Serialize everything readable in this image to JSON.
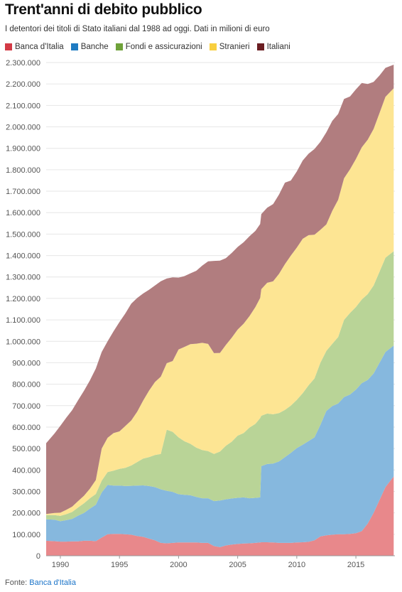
{
  "title": "Trent'anni di debito pubblico",
  "subtitle": "I detentori dei titoli di Stato italiani dal 1988 ad oggi. Dati in milioni di euro",
  "source": {
    "label": "Fonte:",
    "link_text": "Banca d'Italia"
  },
  "chart_data": {
    "type": "area",
    "stacked": true,
    "x": [
      1988.8,
      1989.5,
      1990,
      1990.5,
      1991,
      1991.5,
      1992,
      1992.5,
      1993,
      1993.5,
      1994,
      1994.5,
      1995,
      1995.5,
      1996,
      1996.5,
      1997,
      1997.5,
      1998,
      1998.5,
      1999,
      1999.5,
      2000,
      2000.5,
      2001,
      2001.5,
      2002,
      2002.5,
      2003,
      2003.5,
      2004,
      2004.5,
      2005,
      2005.5,
      2006,
      2006.5,
      2006.9,
      2007,
      2007.5,
      2008,
      2008.5,
      2009,
      2009.5,
      2010,
      2010.5,
      2011,
      2011.5,
      2012,
      2012.5,
      2013,
      2013.5,
      2014,
      2014.5,
      2015,
      2015.5,
      2016,
      2016.5,
      2017,
      2017.5,
      2018.2
    ],
    "series": [
      {
        "name": "Banca d'Italia",
        "color": "#e8888b",
        "values": [
          70,
          68,
          66,
          66,
          67,
          67,
          70,
          70,
          68,
          85,
          100,
          102,
          102,
          100,
          98,
          92,
          88,
          80,
          72,
          60,
          58,
          60,
          62,
          62,
          62,
          62,
          60,
          60,
          45,
          40,
          48,
          52,
          55,
          57,
          58,
          60,
          62,
          63,
          63,
          62,
          60,
          60,
          60,
          62,
          63,
          65,
          72,
          90,
          95,
          98,
          100,
          100,
          102,
          105,
          115,
          150,
          200,
          260,
          320,
          370
        ]
      },
      {
        "name": "Banche",
        "color": "#86b8de",
        "values": [
          100,
          100,
          95,
          100,
          105,
          120,
          130,
          150,
          170,
          210,
          230,
          225,
          225,
          225,
          228,
          235,
          240,
          245,
          248,
          250,
          245,
          238,
          225,
          222,
          220,
          212,
          208,
          208,
          210,
          218,
          215,
          215,
          215,
          215,
          210,
          210,
          210,
          355,
          365,
          368,
          380,
          400,
          420,
          440,
          455,
          470,
          480,
          520,
          580,
          600,
          610,
          640,
          650,
          670,
          690,
          670,
          650,
          640,
          630,
          610
        ]
      },
      {
        "name": "Fondi e assicurazioni",
        "color": "#b9d497",
        "values": [
          20,
          22,
          25,
          28,
          32,
          38,
          45,
          48,
          50,
          55,
          60,
          70,
          78,
          85,
          95,
          110,
          125,
          135,
          150,
          165,
          285,
          280,
          265,
          250,
          240,
          230,
          225,
          220,
          220,
          228,
          250,
          265,
          290,
          300,
          330,
          345,
          370,
          235,
          235,
          230,
          225,
          220,
          220,
          225,
          240,
          260,
          275,
          290,
          280,
          290,
          310,
          360,
          380,
          385,
          390,
          400,
          410,
          425,
          440,
          440
        ]
      },
      {
        "name": "Stranieri",
        "color": "#fde593",
        "values": [
          5,
          10,
          15,
          20,
          25,
          30,
          35,
          45,
          65,
          150,
          160,
          175,
          175,
          195,
          210,
          235,
          270,
          310,
          340,
          360,
          310,
          330,
          410,
          440,
          465,
          485,
          500,
          500,
          470,
          460,
          470,
          485,
          495,
          510,
          520,
          545,
          560,
          590,
          610,
          620,
          650,
          680,
          700,
          710,
          720,
          700,
          670,
          620,
          590,
          620,
          640,
          660,
          670,
          690,
          710,
          720,
          730,
          740,
          750,
          760
        ]
      },
      {
        "name": "Italiani",
        "color": "#b17d7f",
        "values": [
          330,
          370,
          405,
          430,
          450,
          470,
          490,
          505,
          520,
          450,
          450,
          475,
          510,
          525,
          545,
          530,
          500,
          470,
          450,
          445,
          395,
          390,
          335,
          330,
          330,
          340,
          360,
          385,
          430,
          430,
          405,
          395,
          385,
          380,
          372,
          355,
          345,
          350,
          350,
          360,
          370,
          380,
          350,
          355,
          365,
          380,
          400,
          410,
          430,
          420,
          400,
          370,
          340,
          325,
          300,
          260,
          220,
          175,
          135,
          110
        ]
      }
    ],
    "unit": "milioni di euro",
    "ylim": [
      0,
      2300000
    ],
    "xlim": [
      1988.8,
      2018.3
    ],
    "y_ticks": [
      "0",
      "100.000",
      "200.000",
      "300.000",
      "400.000",
      "500.000",
      "600.000",
      "700.000",
      "800.000",
      "900.000",
      "1.000.000",
      "1.100.000",
      "1.200.000",
      "1.300.000",
      "1.400.000",
      "1.500.000",
      "1.600.000",
      "1.700.000",
      "1.800.000",
      "1.900.000",
      "2.000.000",
      "2.100.000",
      "2.200.000",
      "2.300.000"
    ],
    "x_ticks": [
      "1990",
      "1995",
      "2000",
      "2005",
      "2010",
      "2015"
    ],
    "x_tick_values": [
      1990,
      1995,
      2000,
      2005,
      2010,
      2015
    ],
    "grid": true,
    "legend_position": "top-left"
  }
}
